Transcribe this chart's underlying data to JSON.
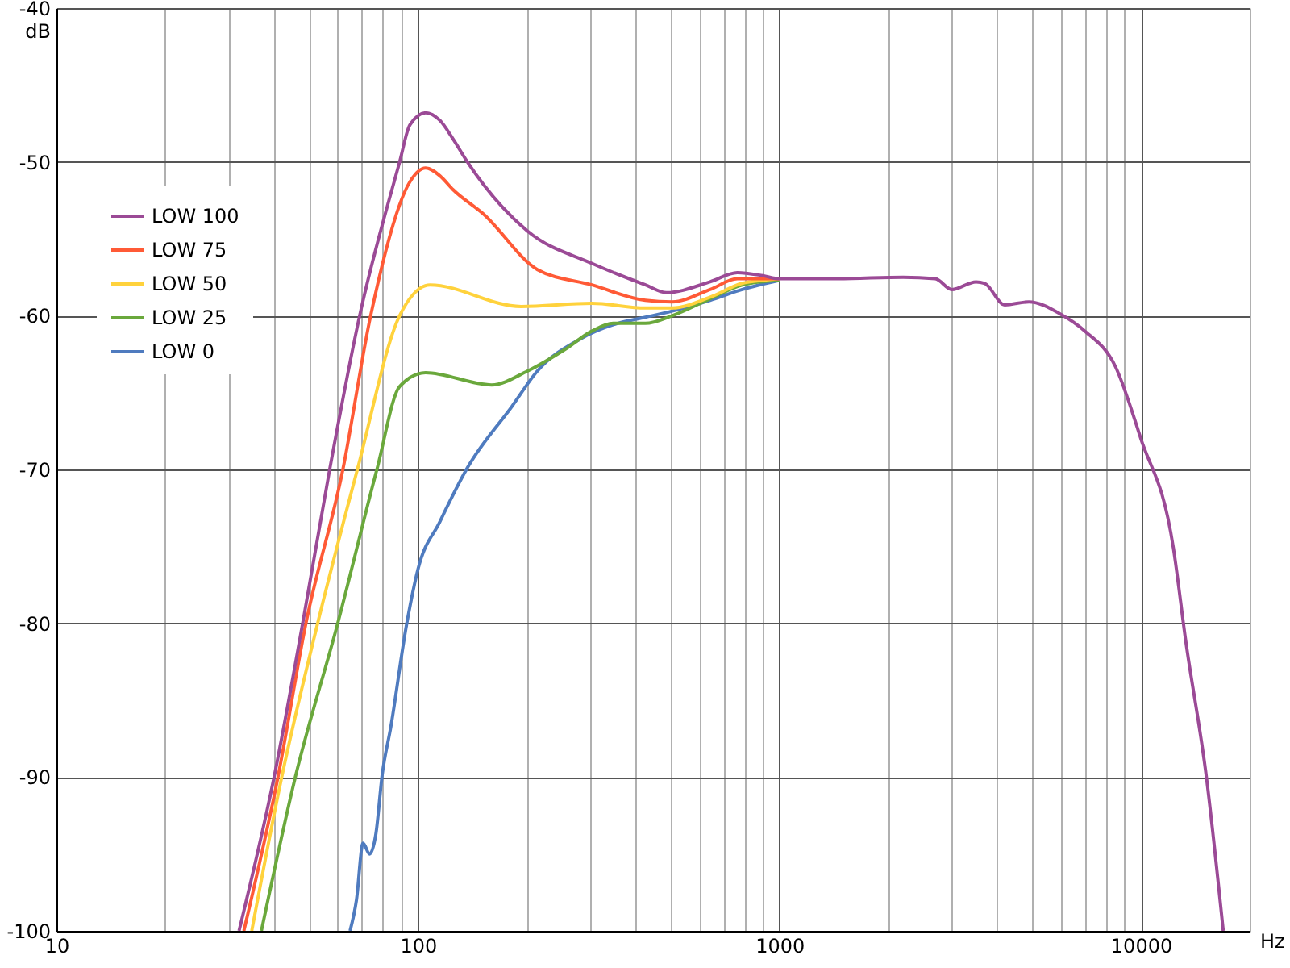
{
  "chart_data": {
    "type": "line",
    "xlabel": "Hz",
    "ylabel": "dB",
    "log": "x",
    "grid": true,
    "legend": "top left",
    "line_style": "solid",
    "marker": "none",
    "xlim": [
      10,
      20000
    ],
    "ylim": [
      -100,
      -40
    ],
    "xticks": [
      10,
      {
        "value": 20,
        "label": null
      },
      {
        "value": 30,
        "label": null
      },
      {
        "value": 40,
        "label": null
      },
      {
        "value": 50,
        "label": null
      },
      {
        "value": 60,
        "label": null
      },
      {
        "value": 70,
        "label": null
      },
      {
        "value": 80,
        "label": null
      },
      {
        "value": 90,
        "label": null
      },
      100,
      {
        "value": 200,
        "label": null
      },
      {
        "value": 300,
        "label": null
      },
      {
        "value": 400,
        "label": null
      },
      {
        "value": 500,
        "label": null
      },
      {
        "value": 600,
        "label": null
      },
      {
        "value": 700,
        "label": null
      },
      {
        "value": 800,
        "label": null
      },
      {
        "value": 900,
        "label": null
      },
      1000,
      {
        "value": 2000,
        "label": null
      },
      {
        "value": 3000,
        "label": null
      },
      {
        "value": 4000,
        "label": null
      },
      {
        "value": 5000,
        "label": null
      },
      {
        "value": 6000,
        "label": null
      },
      {
        "value": 7000,
        "label": null
      },
      {
        "value": 8000,
        "label": null
      },
      {
        "value": 9000,
        "label": null
      },
      10000,
      {
        "value": 20000,
        "label": null
      }
    ],
    "yticks": [
      -100,
      -90,
      -80,
      -70,
      -60,
      -50,
      -40
    ],
    "series": [
      {
        "name": "LOW 100",
        "color": "#9b4a96",
        "x": [
          32,
          40,
          48,
          57,
          69,
          89,
          95,
          105,
          115,
          125,
          137,
          201,
          303,
          426,
          487,
          643,
          765,
          900,
          1000,
          1450,
          2200,
          2700,
          3000,
          3500,
          3700,
          4200,
          4900,
          6000,
          7000,
          8500,
          10000,
          12300,
          13300,
          15200,
          16900
        ],
        "values": [
          -100,
          -90,
          -80,
          -70,
          -60,
          -50,
          -47.6,
          -46.8,
          -47.3,
          -48.5,
          -50,
          -54.5,
          -56.6,
          -58.0,
          -58.5,
          -57.8,
          -57.2,
          -57.4,
          -57.6,
          -57.6,
          -57.5,
          -57.6,
          -58.3,
          -57.8,
          -57.9,
          -59.3,
          -59.1,
          -59.9,
          -61.0,
          -63.3,
          -68.0,
          -75.1,
          -81.1,
          -90.1,
          -100
        ]
      },
      {
        "name": "LOW 75",
        "color": "#ff5a36",
        "x": [
          33,
          41,
          49,
          62,
          74,
          95,
          105,
          115,
          125,
          152,
          214,
          303,
          426,
          505,
          643,
          765,
          900,
          1000
        ],
        "values": [
          -100,
          -90,
          -80,
          -70,
          -60,
          -51.3,
          -50.4,
          -50.9,
          -51.8,
          -53.4,
          -57.0,
          -58.0,
          -59.0,
          -59.1,
          -58.3,
          -57.6,
          -57.6,
          -57.6
        ]
      },
      {
        "name": "LOW 50",
        "color": "#ffd23c",
        "x": [
          34.7,
          42,
          52.8,
          68,
          89,
          108,
          193,
          303,
          426,
          505,
          643,
          789,
          900,
          1000
        ],
        "values": [
          -100,
          -90,
          -80,
          -70,
          -60,
          -58.0,
          -59.4,
          -59.2,
          -59.5,
          -59.5,
          -58.8,
          -57.9,
          -57.7,
          -57.6
        ]
      },
      {
        "name": "LOW 25",
        "color": "#6aa83c",
        "x": [
          36.9,
          45.8,
          60,
          77,
          89,
          105,
          160,
          201,
          255,
          303,
          347,
          426,
          505,
          643,
          789,
          1000
        ],
        "values": [
          -100,
          -90,
          -80,
          -70,
          -64.6,
          -63.7,
          -64.5,
          -63.6,
          -62.2,
          -61.0,
          -60.5,
          -60.5,
          -60.0,
          -58.9,
          -58.0,
          -57.7
        ]
      },
      {
        "name": "LOW 0",
        "color": "#4f7bbf",
        "x": [
          64.9,
          67.6,
          70.5,
          73.5,
          76.5,
          79.7,
          84.2,
          93,
          100,
          115,
          137,
          182,
          214,
          282,
          357,
          426,
          505,
          643,
          789,
          1000
        ],
        "values": [
          -100,
          -98,
          -94.3,
          -95.0,
          -93.7,
          -89.8,
          -86.7,
          -80.1,
          -76.5,
          -73.4,
          -69.9,
          -65.9,
          -63.6,
          -61.5,
          -60.5,
          -60.1,
          -59.7,
          -59.0,
          -58.3,
          -57.7
        ]
      }
    ]
  }
}
